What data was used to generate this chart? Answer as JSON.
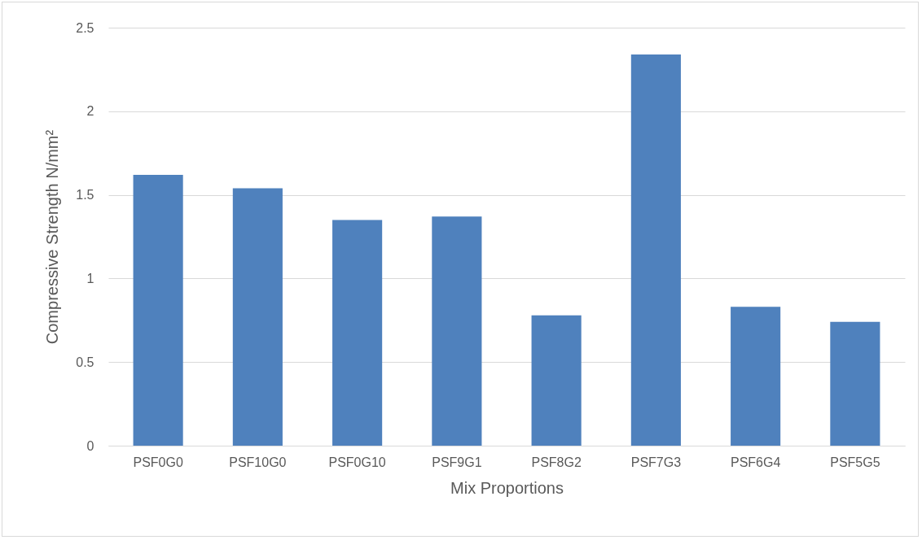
{
  "chart_data": {
    "type": "bar",
    "xlabel": "Mix Proportions",
    "ylabel": "Compressive Strength N/mm²",
    "categories": [
      "PSF0G0",
      "PSF10G0",
      "PSF0G10",
      "PSF9G1",
      "PSF8G2",
      "PSF7G3",
      "PSF6G4",
      "PSF5G5"
    ],
    "values": [
      1.62,
      1.54,
      1.35,
      1.37,
      0.78,
      2.34,
      0.83,
      0.74
    ],
    "color": "#4f81bd",
    "ylim": [
      0,
      2.5
    ],
    "yticks": [
      0,
      0.5,
      1,
      1.5,
      2,
      2.5
    ],
    "grid": "y"
  }
}
